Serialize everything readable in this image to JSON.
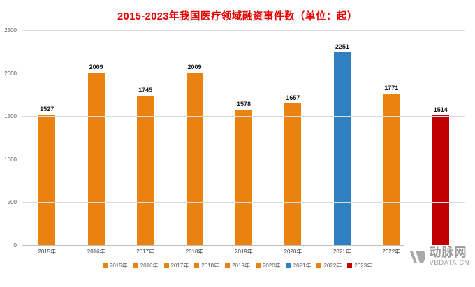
{
  "title": "2015-2023年我国医疗领域融资事件数（单位：起）",
  "watermark": {
    "brand": "动脉网",
    "site": "VBDATA.CN"
  },
  "colors": {
    "title": "#e60000",
    "bar_default": "#ea8210",
    "bar_highlight_2021": "#2e80c3",
    "bar_highlight_2023": "#c00000",
    "gridline": "#dcdcdc",
    "axis": "#bfbfbf"
  },
  "chart_data": {
    "type": "bar",
    "title": "2015-2023年我国医疗领域融资事件数（单位：起）",
    "categories": [
      "2015年",
      "2016年",
      "2017年",
      "2018年",
      "2019年",
      "2020年",
      "2021年",
      "2022年",
      "2023年"
    ],
    "values": [
      1527,
      2009,
      1745,
      2009,
      1578,
      1657,
      2251,
      1771,
      1514
    ],
    "colors": [
      "#ea8210",
      "#ea8210",
      "#ea8210",
      "#ea8210",
      "#ea8210",
      "#ea8210",
      "#2e80c3",
      "#ea8210",
      "#c00000"
    ],
    "xlabel": "",
    "ylabel": "",
    "ylim": [
      0,
      2500
    ],
    "yticks": [
      0,
      500,
      1000,
      1500,
      2000,
      2500
    ],
    "grid": true,
    "legend_position": "bottom",
    "data_labels": true
  }
}
